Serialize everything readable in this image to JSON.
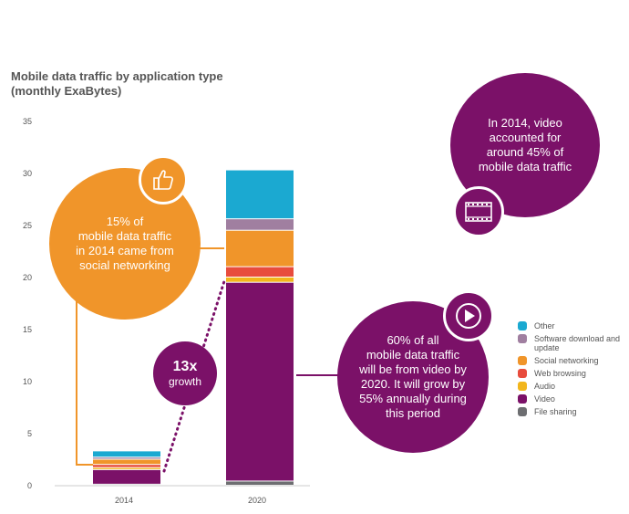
{
  "chart_data": {
    "type": "bar",
    "stacked": true,
    "title": "Mobile data traffic by application type",
    "subtitle": "(monthly ExaBytes)",
    "xlabel": "",
    "ylabel": "",
    "ylim": [
      0,
      35
    ],
    "yticks": [
      0,
      5,
      10,
      15,
      20,
      25,
      30,
      35
    ],
    "categories": [
      "2014",
      "2020"
    ],
    "series": [
      {
        "name": "File sharing",
        "color": "#6d6e71",
        "values": [
          0.1,
          0.4
        ]
      },
      {
        "name": "Video",
        "color": "#7b1168",
        "values": [
          1.4,
          19.1
        ]
      },
      {
        "name": "Audio",
        "color": "#f2b61c",
        "values": [
          0.2,
          0.5
        ]
      },
      {
        "name": "Web browsing",
        "color": "#e84c3d",
        "values": [
          0.3,
          1.0
        ]
      },
      {
        "name": "Social networking",
        "color": "#f0952a",
        "values": [
          0.5,
          3.5
        ]
      },
      {
        "name": "Software download and update",
        "color": "#a07fa0",
        "values": [
          0.2,
          1.1
        ]
      },
      {
        "name": "Other",
        "color": "#1ba9d1",
        "values": [
          0.6,
          4.7
        ]
      }
    ],
    "legend": {
      "position": "right",
      "entries": [
        "Other",
        "Software download and update",
        "Social networking",
        "Web browsing",
        "Audio",
        "Video",
        "File sharing"
      ]
    },
    "annotations": {
      "social": [
        "15% of",
        "mobile data traffic",
        "in 2014 came from",
        "social networking"
      ],
      "video2014": [
        "In 2014, video",
        "accounted for",
        "around 45% of",
        "mobile data traffic"
      ],
      "video2020": [
        "60% of all",
        "mobile data traffic",
        "will be from video by",
        "2020. It will grow by",
        "55% annually during",
        "this period"
      ],
      "growth": {
        "big": "13x",
        "small": "growth"
      }
    }
  },
  "icons": {
    "thumb": "thumbs-up-icon",
    "film": "film-strip-icon",
    "play": "play-icon"
  },
  "colors": {
    "orange": "#f0952a",
    "purple": "#7b1168",
    "axis_text": "#555555"
  }
}
